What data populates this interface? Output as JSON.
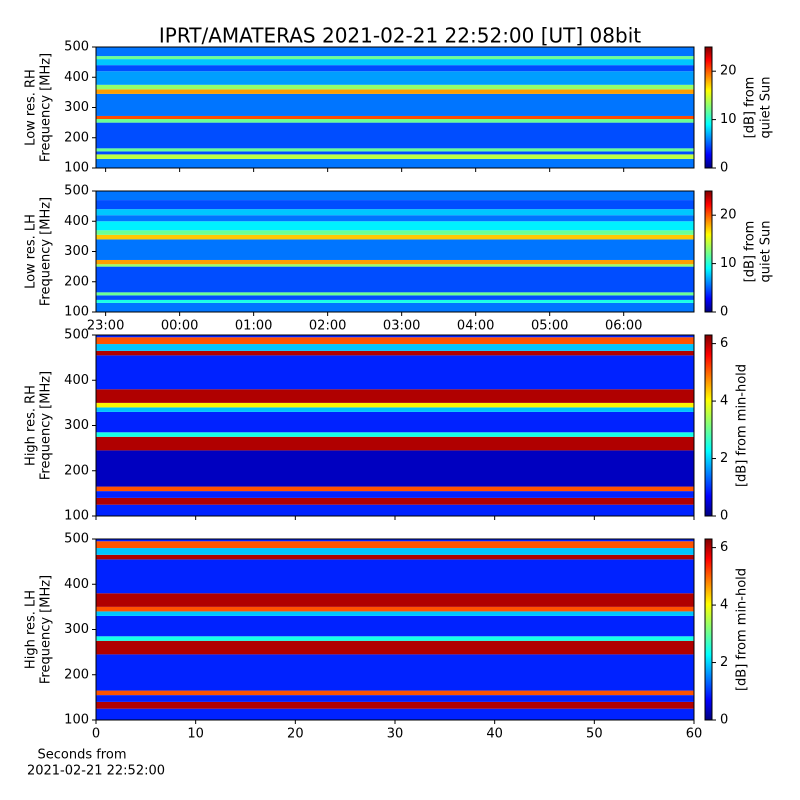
{
  "title": "IPRT/AMATERAS 2021-02-21 22:52:00 [UT]   08bit",
  "chart_data": [
    {
      "type": "heatmap",
      "ylabel": [
        "Low res. RH",
        "Frequency [MHz]"
      ],
      "ylim": [
        100,
        500
      ],
      "yticks": [
        100,
        200,
        300,
        400,
        500
      ],
      "xlim": [
        22.87,
        30.95
      ],
      "xticks": [
        23,
        24,
        25,
        26,
        27,
        28,
        29,
        30
      ],
      "freq_edges": [
        100,
        130,
        145,
        155,
        165,
        250,
        262,
        272,
        345,
        360,
        375,
        420,
        440,
        460,
        470,
        500
      ],
      "values": [
        6,
        14,
        5,
        12,
        5,
        12,
        20,
        6,
        18,
        13,
        7,
        5,
        8,
        12,
        6
      ],
      "clim": [
        0,
        25
      ],
      "cticks": [
        0,
        10,
        20
      ],
      "colorbar_label": [
        "[dB] from",
        "quiet Sun"
      ]
    },
    {
      "type": "heatmap",
      "ylabel": [
        "Low res. LH",
        "Frequency [MHz]"
      ],
      "ylim": [
        100,
        500
      ],
      "yticks": [
        100,
        200,
        300,
        400,
        500
      ],
      "xlim": [
        22.87,
        30.95
      ],
      "xticks": [
        {
          "value": 23,
          "label": "23:00"
        },
        {
          "value": 24,
          "label": "00:00"
        },
        {
          "value": 25,
          "label": "01:00"
        },
        {
          "value": 26,
          "label": "02:00"
        },
        {
          "value": 27,
          "label": "03:00"
        },
        {
          "value": 28,
          "label": "04:00"
        },
        {
          "value": 29,
          "label": "05:00"
        },
        {
          "value": 30,
          "label": "06:00"
        }
      ],
      "freq_edges": [
        100,
        130,
        140,
        155,
        165,
        250,
        258,
        272,
        340,
        355,
        370,
        400,
        420,
        440,
        470,
        500
      ],
      "values": [
        6,
        10,
        5,
        12,
        5,
        13,
        18,
        6,
        17,
        12,
        9,
        6,
        8,
        5,
        6
      ],
      "clim": [
        0,
        25
      ],
      "cticks": [
        0,
        10,
        20
      ],
      "colorbar_label": [
        "[dB] from",
        "quiet Sun"
      ]
    },
    {
      "type": "heatmap",
      "ylabel": [
        "High res. RH",
        "Frequency [MHz]"
      ],
      "ylim": [
        100,
        500
      ],
      "yticks": [
        100,
        200,
        300,
        400,
        500
      ],
      "xlim": [
        0,
        60
      ],
      "xticks": [
        0,
        10,
        20,
        30,
        40,
        50,
        60
      ],
      "freq_edges": [
        100,
        125,
        140,
        155,
        165,
        245,
        275,
        285,
        330,
        340,
        350,
        380,
        455,
        465,
        480,
        495,
        500
      ],
      "values": [
        1,
        6,
        1,
        5,
        0.4,
        6,
        2.5,
        1,
        2,
        4,
        6,
        1,
        6,
        2,
        5,
        1
      ],
      "clim": [
        0,
        6.3
      ],
      "cticks": [
        0,
        2,
        4,
        6
      ],
      "colorbar_label": [
        "[dB] from min-hold"
      ]
    },
    {
      "type": "heatmap",
      "ylabel": [
        "High res. LH",
        "Frequency [MHz]"
      ],
      "ylim": [
        100,
        500
      ],
      "yticks": [
        100,
        200,
        300,
        400,
        500
      ],
      "xlim": [
        0,
        60
      ],
      "xticks": [
        0,
        10,
        20,
        30,
        40,
        50,
        60
      ],
      "xlabel": [
        "Seconds from",
        "2021-02-21 22:52:00"
      ],
      "freq_edges": [
        100,
        125,
        140,
        155,
        165,
        245,
        275,
        285,
        330,
        340,
        350,
        380,
        455,
        465,
        480,
        495,
        500
      ],
      "values": [
        1,
        6,
        1,
        5,
        1,
        6,
        2.5,
        1,
        2,
        5,
        6,
        1,
        6,
        2,
        5,
        1
      ],
      "clim": [
        0,
        6.3
      ],
      "cticks": [
        0,
        2,
        4,
        6
      ],
      "colorbar_label": [
        "[dB] from min-hold"
      ]
    }
  ]
}
